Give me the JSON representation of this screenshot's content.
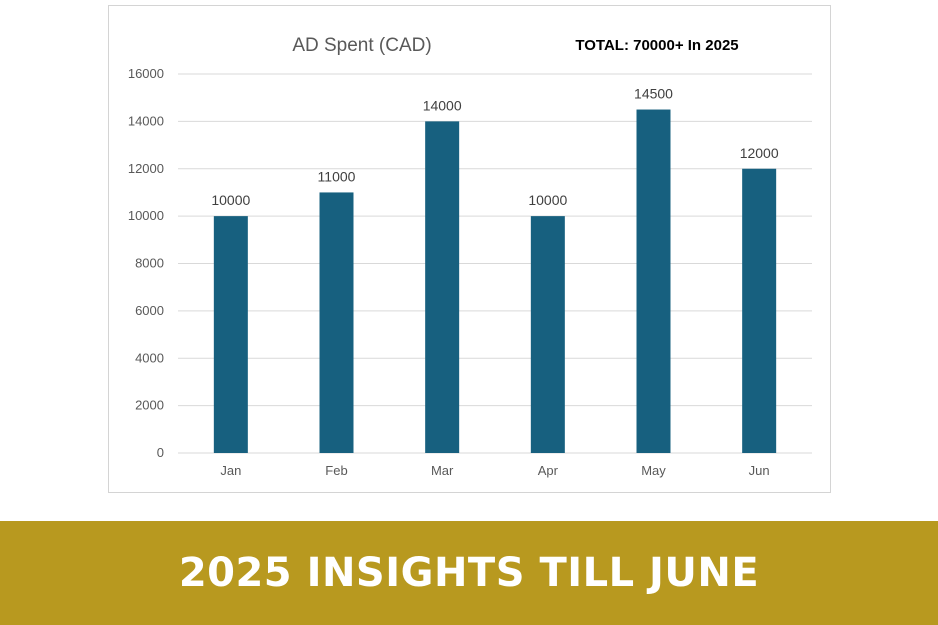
{
  "chart_data": {
    "type": "bar",
    "title": "AD Spent (CAD)",
    "annotation": "TOTAL: 70000+ In 2025",
    "categories": [
      "Jan",
      "Feb",
      "Mar",
      "Apr",
      "May",
      "Jun"
    ],
    "values": [
      10000,
      11000,
      14000,
      10000,
      14500,
      12000
    ],
    "ylim": [
      0,
      16000
    ],
    "y_ticks": [
      "0",
      "2000",
      "4000",
      "6000",
      "8000",
      "10000",
      "12000",
      "14000",
      "16000"
    ],
    "grid": true,
    "legend": "none",
    "bar_color": "#17607f",
    "grid_color": "#d9d9d9"
  },
  "banner": {
    "text": "2025 INSIGHTS TILL JUNE",
    "color": "#b8991f"
  }
}
